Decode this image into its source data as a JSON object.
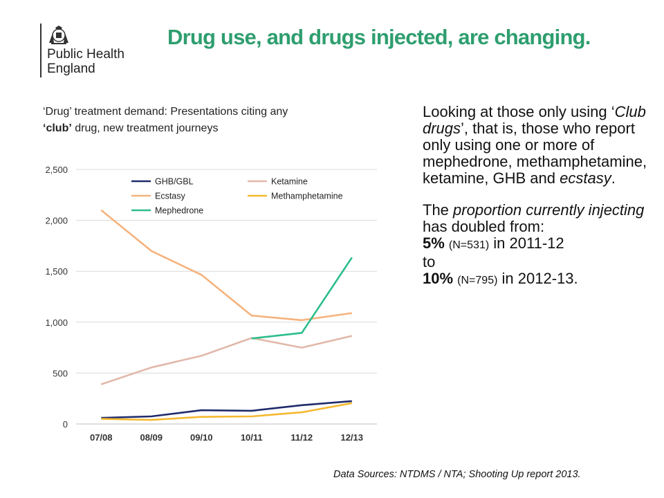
{
  "logo": {
    "line1": "Public Health",
    "line2": "England"
  },
  "title": "Drug use, and drugs injected, are changing.",
  "caption": {
    "part1": "‘Drug’  treatment demand: Presentations citing any",
    "part2_bold": "‘club’",
    "part2_rest": " drug, new treatment journeys"
  },
  "side_text": {
    "p1_a": "Looking at those only using ‘",
    "p1_italic": "Club drugs",
    "p1_b": "’, that is, those who report only using one or more of mephedrone, methamphetamine, ketamine, GHB and ",
    "p1_italic2": "ecstasy",
    "p1_c": ".",
    "p2_a": "The ",
    "p2_italic": "proportion currently injecting",
    "p2_b": " has doubled from:",
    "line_2011_pct": "5%",
    "line_2011_n": "(N=531)",
    "line_2011_rest": " in 2011-12",
    "to": "to",
    "line_2012_pct": "10%",
    "line_2012_n": "(N=795)",
    "line_2012_rest": " in 2012-13."
  },
  "source": "Data Sources: NTDMS / NTA; Shooting Up report 2013.",
  "chart_data": {
    "type": "line",
    "categories": [
      "07/08",
      "08/09",
      "09/10",
      "10/11",
      "11/12",
      "12/13"
    ],
    "ylim": [
      0,
      2500
    ],
    "yticks": [
      0,
      500,
      1000,
      1500,
      2000,
      2500
    ],
    "ytick_labels": [
      "0",
      "500",
      "1,000",
      "1,500",
      "2,000",
      "2,500"
    ],
    "grid": true,
    "legend_placement": "top",
    "series": [
      {
        "name": "GHB/GBL",
        "color": "#1f2a6b",
        "values": [
          60,
          75,
          135,
          130,
          185,
          225
        ]
      },
      {
        "name": "Ketamine",
        "color": "#e1b8aa",
        "values": [
          390,
          555,
          670,
          845,
          750,
          865
        ]
      },
      {
        "name": "Ecstasy",
        "color": "#f5b27c",
        "values": [
          2100,
          1700,
          1465,
          1065,
          1020,
          1090
        ]
      },
      {
        "name": "Methamphetamine",
        "color": "#f5b82e",
        "values": [
          50,
          40,
          70,
          75,
          115,
          205
        ]
      },
      {
        "name": "Mephedrone",
        "color": "#2bbd8a",
        "values": [
          null,
          null,
          null,
          840,
          895,
          1635
        ]
      }
    ]
  }
}
